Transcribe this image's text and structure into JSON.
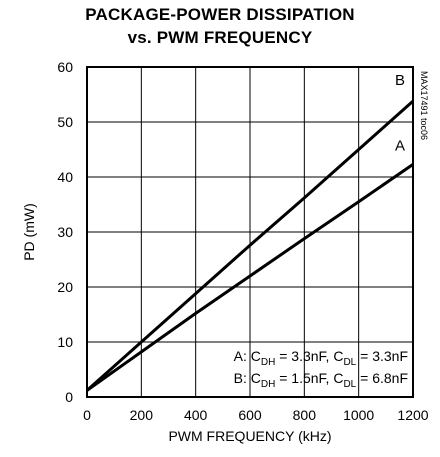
{
  "chart_data": {
    "type": "line",
    "title_lines": [
      "PACKAGE-POWER DISSIPATION",
      "vs. PWM FREQUENCY"
    ],
    "xlabel": "PWM FREQUENCY (kHz)",
    "ylabel": "PD (mW)",
    "xlim": [
      0,
      1200
    ],
    "ylim": [
      0,
      60
    ],
    "xticks": [
      0,
      200,
      400,
      600,
      800,
      1000,
      1200
    ],
    "yticks": [
      0,
      10,
      20,
      30,
      40,
      50,
      60
    ],
    "grid": true,
    "figure_id": "MAX17491 toc06",
    "series": [
      {
        "name": "A",
        "x": [
          0,
          200,
          400,
          600,
          800,
          1000,
          1200
        ],
        "y": [
          1.2,
          8.2,
          15.2,
          22.0,
          28.8,
          35.5,
          42.3
        ]
      },
      {
        "name": "B",
        "x": [
          0,
          200,
          400,
          600,
          800,
          1000,
          1200
        ],
        "y": [
          1.2,
          10.0,
          18.8,
          27.6,
          36.2,
          45.0,
          53.8
        ]
      }
    ],
    "annotations": {
      "a": {
        "prefix": "A: C",
        "s1": "DH",
        "mid": " = 3.3nF, C",
        "s2": "DL",
        "suffix": " = 3.3nF"
      },
      "b": {
        "prefix": "B: C",
        "s1": "DH",
        "mid": " = 1.5nF, C",
        "s2": "DL",
        "suffix": " = 6.8nF"
      }
    }
  }
}
